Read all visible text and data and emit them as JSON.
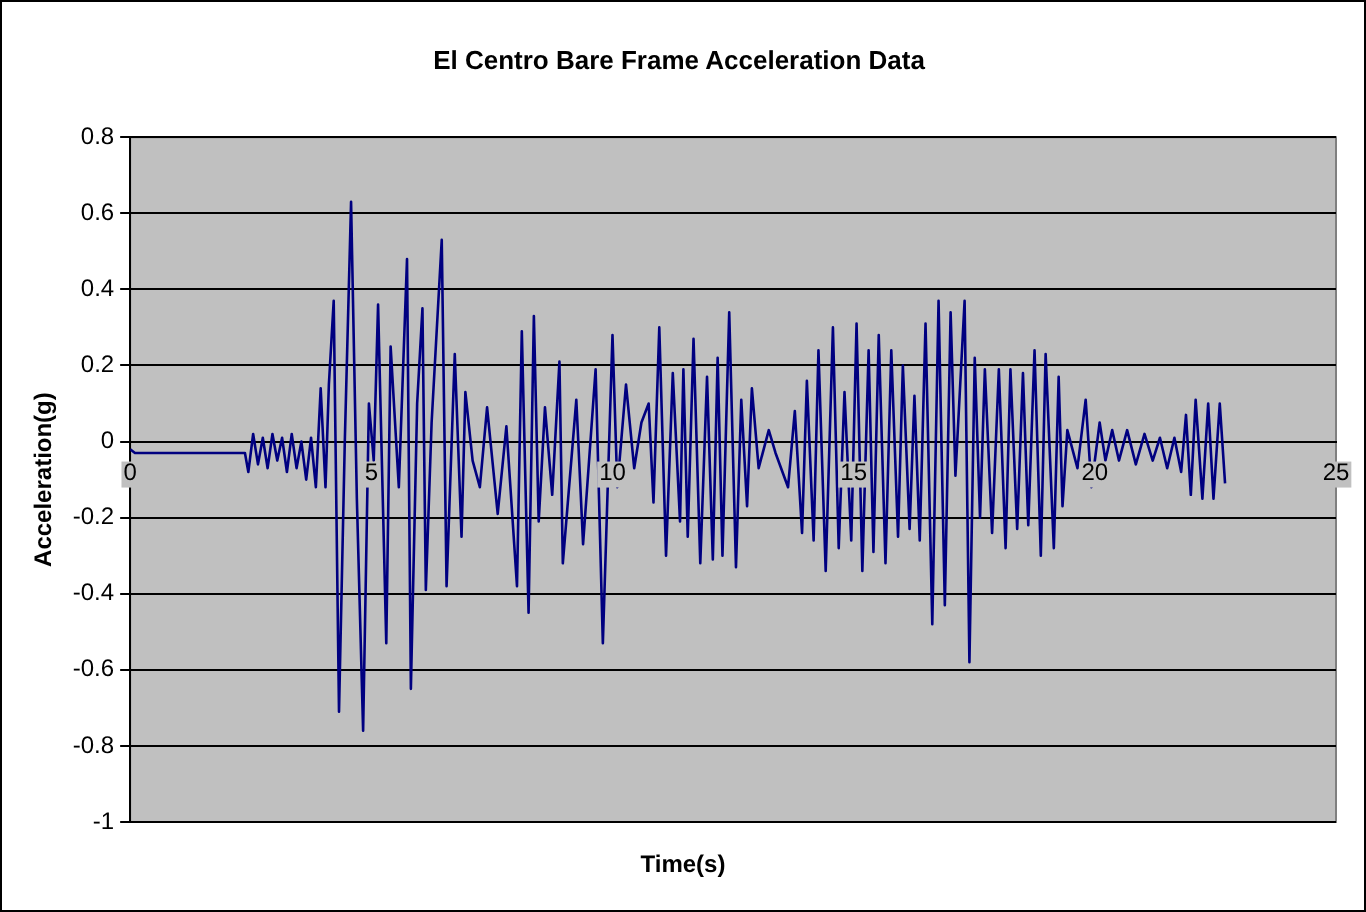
{
  "chart_data": {
    "type": "line",
    "title": "El Centro Bare Frame Acceleration Data",
    "xlabel": "Time(s)",
    "ylabel": "Acceleration(g)",
    "xlim": [
      0,
      25
    ],
    "xticks": [
      0,
      5,
      10,
      15,
      20,
      25
    ],
    "ylim": [
      -1,
      0.8
    ],
    "yticks": [
      -1,
      -0.8,
      -0.6,
      -0.4,
      -0.2,
      0,
      0.2,
      0.4,
      0.6,
      0.8
    ],
    "grid": "y",
    "legend": false,
    "marker": "none",
    "line_style": "solid",
    "series": [
      {
        "color": "#000080",
        "x": [
          0,
          0.1,
          0.5,
          1.0,
          1.5,
          2.0,
          2.38,
          2.45,
          2.55,
          2.65,
          2.75,
          2.85,
          2.95,
          3.05,
          3.15,
          3.25,
          3.35,
          3.45,
          3.55,
          3.65,
          3.75,
          3.85,
          3.95,
          4.05,
          4.12,
          4.22,
          4.33,
          4.45,
          4.58,
          4.7,
          4.83,
          4.95,
          5.05,
          5.14,
          5.31,
          5.4,
          5.57,
          5.74,
          5.82,
          5.95,
          6.06,
          6.13,
          6.25,
          6.46,
          6.56,
          6.73,
          6.87,
          6.95,
          7.1,
          7.25,
          7.4,
          7.62,
          7.8,
          8.02,
          8.12,
          8.26,
          8.37,
          8.47,
          8.6,
          8.75,
          8.9,
          8.97,
          9.25,
          9.39,
          9.65,
          9.8,
          10.0,
          10.1,
          10.28,
          10.45,
          10.6,
          10.75,
          10.85,
          10.97,
          11.11,
          11.25,
          11.4,
          11.47,
          11.56,
          11.68,
          11.82,
          11.96,
          12.08,
          12.18,
          12.28,
          12.42,
          12.56,
          12.67,
          12.79,
          12.89,
          13.03,
          13.24,
          13.38,
          13.64,
          13.78,
          13.93,
          14.03,
          14.17,
          14.27,
          14.42,
          14.57,
          14.69,
          14.81,
          14.95,
          15.06,
          15.18,
          15.31,
          15.41,
          15.52,
          15.66,
          15.78,
          15.92,
          16.02,
          16.16,
          16.26,
          16.37,
          16.49,
          16.63,
          16.76,
          16.89,
          17.01,
          17.11,
          17.3,
          17.4,
          17.51,
          17.62,
          17.72,
          17.87,
          18.01,
          18.15,
          18.25,
          18.39,
          18.51,
          18.62,
          18.75,
          18.88,
          18.98,
          19.15,
          19.25,
          19.33,
          19.43,
          19.64,
          19.81,
          19.93,
          20.1,
          20.22,
          20.36,
          20.5,
          20.67,
          20.85,
          21.03,
          21.2,
          21.35,
          21.5,
          21.65,
          21.79,
          21.89,
          21.99,
          22.09,
          22.23,
          22.35,
          22.46,
          22.59,
          22.7
        ],
        "values": [
          -0.02,
          -0.03,
          -0.03,
          -0.03,
          -0.03,
          -0.03,
          -0.03,
          -0.08,
          0.02,
          -0.06,
          0.01,
          -0.07,
          0.02,
          -0.05,
          0.01,
          -0.08,
          0.02,
          -0.07,
          0.0,
          -0.1,
          0.01,
          -0.12,
          0.14,
          -0.12,
          0.15,
          0.37,
          -0.71,
          0.0,
          0.63,
          -0.15,
          -0.76,
          0.1,
          -0.05,
          0.36,
          -0.53,
          0.25,
          -0.12,
          0.48,
          -0.65,
          0.1,
          0.35,
          -0.39,
          0.05,
          0.53,
          -0.38,
          0.23,
          -0.25,
          0.13,
          -0.05,
          -0.12,
          0.09,
          -0.19,
          0.04,
          -0.38,
          0.29,
          -0.45,
          0.33,
          -0.21,
          0.09,
          -0.14,
          0.21,
          -0.32,
          0.11,
          -0.27,
          0.19,
          -0.53,
          0.28,
          -0.12,
          0.15,
          -0.07,
          0.05,
          0.1,
          -0.16,
          0.3,
          -0.3,
          0.18,
          -0.21,
          0.19,
          -0.25,
          0.27,
          -0.32,
          0.17,
          -0.31,
          0.22,
          -0.3,
          0.34,
          -0.33,
          0.11,
          -0.17,
          0.14,
          -0.07,
          0.03,
          -0.03,
          -0.12,
          0.08,
          -0.24,
          0.16,
          -0.26,
          0.24,
          -0.34,
          0.3,
          -0.28,
          0.13,
          -0.26,
          0.31,
          -0.34,
          0.24,
          -0.29,
          0.28,
          -0.32,
          0.24,
          -0.25,
          0.2,
          -0.23,
          0.12,
          -0.26,
          0.31,
          -0.48,
          0.37,
          -0.43,
          0.34,
          -0.09,
          0.37,
          -0.58,
          0.22,
          -0.2,
          0.19,
          -0.24,
          0.19,
          -0.28,
          0.19,
          -0.23,
          0.18,
          -0.22,
          0.24,
          -0.3,
          0.23,
          -0.28,
          0.17,
          -0.17,
          0.03,
          -0.07,
          0.11,
          -0.12,
          0.05,
          -0.05,
          0.03,
          -0.05,
          0.03,
          -0.06,
          0.02,
          -0.05,
          0.01,
          -0.07,
          0.01,
          -0.08,
          0.07,
          -0.14,
          0.11,
          -0.15,
          0.1,
          -0.15,
          0.1,
          -0.11
        ]
      }
    ]
  }
}
